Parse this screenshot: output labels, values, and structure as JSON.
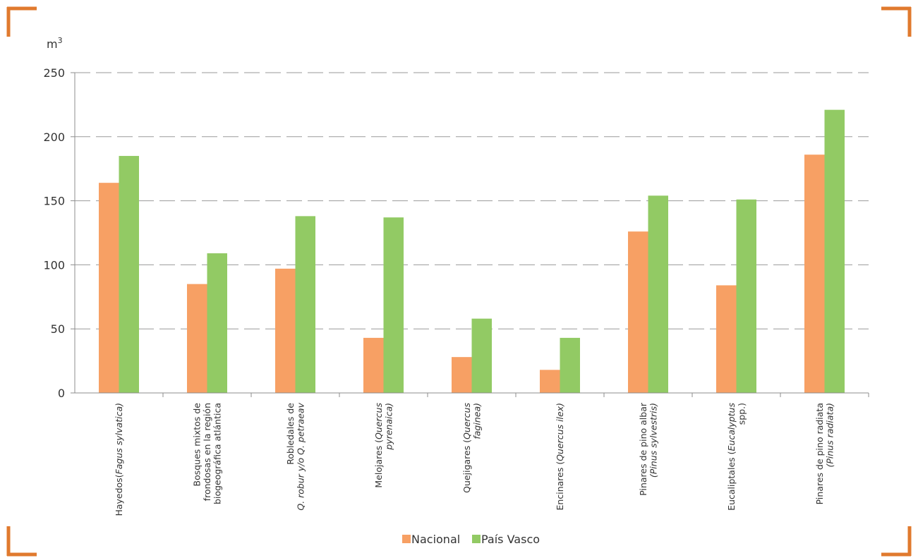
{
  "frame_color": "#e07a2e",
  "chart_data": {
    "type": "bar",
    "unit_label": "m",
    "unit_superscript": "3",
    "ylim": [
      0,
      250
    ],
    "yticks": [
      0,
      50,
      100,
      150,
      200,
      250
    ],
    "grid": "dashed-horizontal",
    "legend_position": "bottom-center",
    "categories": [
      [
        {
          "t": "Hayedos("
        },
        {
          "t": "Fagus sylvatica)",
          "i": true
        }
      ],
      [
        {
          "t": "Bosques mixtos de"
        },
        {
          "t": "frondosas en la región"
        },
        {
          "t": "biogeográfica atlántica"
        }
      ],
      [
        {
          "t": "Robledales de"
        },
        {
          "t": "Q. robur y/o Q. petraeav",
          "i": true
        }
      ],
      [
        {
          "t": "Melojares ("
        },
        {
          "t": "Quercus",
          "i": true
        },
        {
          "t": "pyrenaica)",
          "i": true
        }
      ],
      [
        {
          "t": "Quejigares ("
        },
        {
          "t": "Quercus",
          "i": true
        },
        {
          "t": "faginea)",
          "i": true
        }
      ],
      [
        {
          "t": "Encinares ("
        },
        {
          "t": "Quercus ilex)",
          "i": true
        }
      ],
      [
        {
          "t": "Pinares de pino albar"
        },
        {
          "t": "(Pinus sylvestris)",
          "i": true
        }
      ],
      [
        {
          "t": "Eucaliptales ("
        },
        {
          "t": "Eucalyptus",
          "i": true
        },
        {
          "t": "spp.)"
        }
      ],
      [
        {
          "t": "Pinares de pino radiata"
        },
        {
          "t": "(Pinus radiata)",
          "i": true
        }
      ]
    ],
    "series": [
      {
        "name": "Nacional",
        "color": "#f7a064",
        "values": [
          164,
          85,
          97,
          43,
          28,
          18,
          126,
          84,
          186
        ]
      },
      {
        "name": "País Vasco",
        "color": "#92ca64",
        "values": [
          185,
          109,
          138,
          137,
          58,
          43,
          154,
          151,
          221
        ]
      }
    ]
  }
}
